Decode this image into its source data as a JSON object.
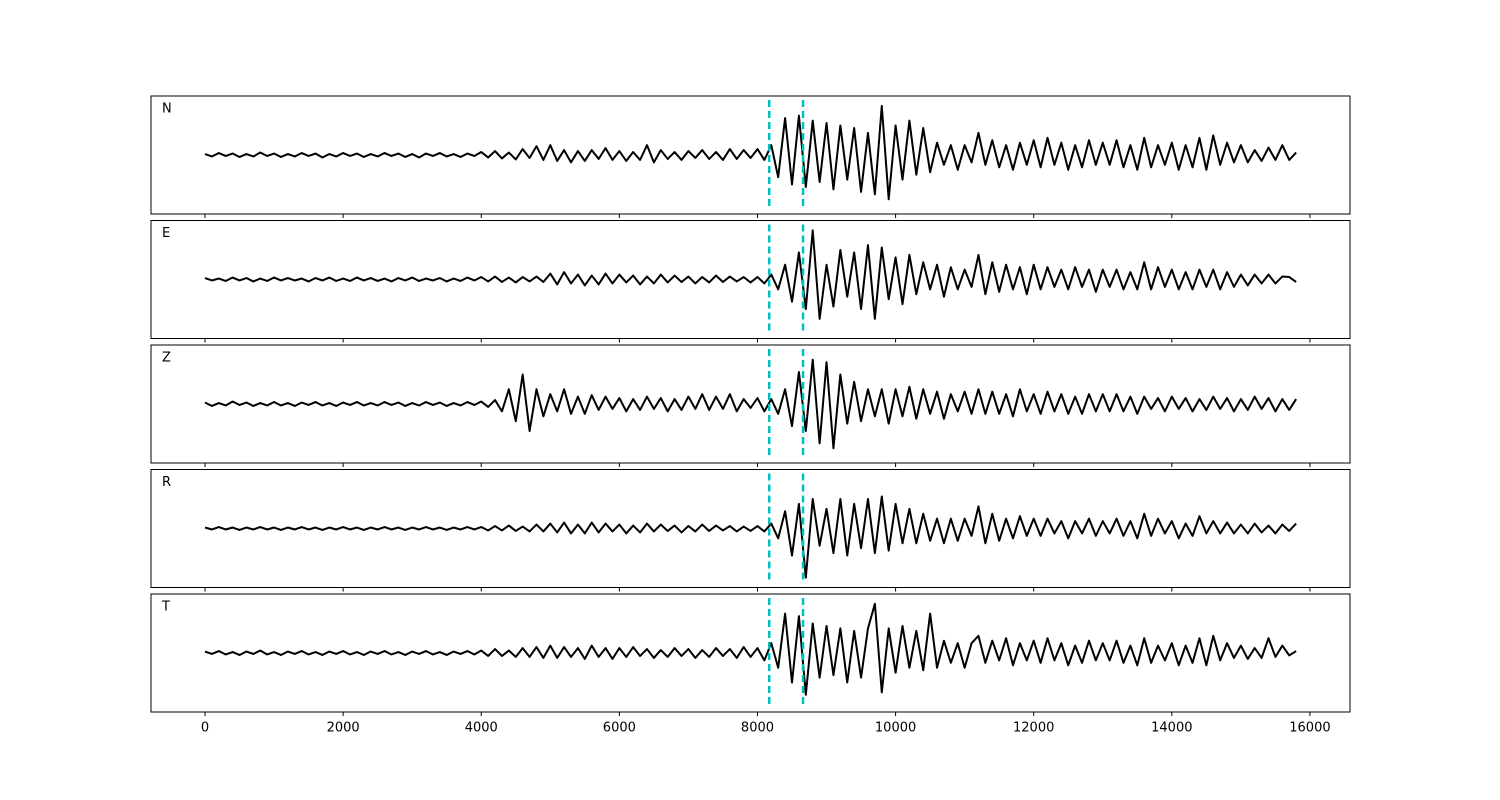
{
  "chart_data": {
    "type": "line",
    "layout": "stacked",
    "xlim": [
      -782,
      16580
    ],
    "xticks": [
      0,
      2000,
      4000,
      6000,
      8000,
      10000,
      12000,
      14000,
      16000
    ],
    "ylim": [
      -1.2,
      1.2
    ],
    "vlines": [
      8170,
      8660
    ],
    "vline_color": "#00bfbf",
    "x": [
      0,
      100,
      200,
      300,
      400,
      500,
      600,
      700,
      800,
      900,
      1000,
      1100,
      1200,
      1300,
      1400,
      1500,
      1600,
      1700,
      1800,
      1900,
      2000,
      2100,
      2200,
      2300,
      2400,
      2500,
      2600,
      2700,
      2800,
      2900,
      3000,
      3100,
      3200,
      3300,
      3400,
      3500,
      3600,
      3700,
      3800,
      3900,
      4000,
      4100,
      4200,
      4300,
      4400,
      4500,
      4600,
      4700,
      4800,
      4900,
      5000,
      5100,
      5200,
      5300,
      5400,
      5500,
      5600,
      5700,
      5800,
      5900,
      6000,
      6100,
      6200,
      6300,
      6400,
      6500,
      6600,
      6700,
      6800,
      6900,
      7000,
      7100,
      7200,
      7300,
      7400,
      7500,
      7600,
      7700,
      7800,
      7900,
      8000,
      8100,
      8200,
      8300,
      8400,
      8500,
      8600,
      8700,
      8800,
      8900,
      9000,
      9100,
      9200,
      9300,
      9400,
      9500,
      9600,
      9700,
      9800,
      9900,
      10000,
      10100,
      10200,
      10300,
      10400,
      10500,
      10600,
      10700,
      10800,
      10900,
      11000,
      11100,
      11200,
      11300,
      11400,
      11500,
      11600,
      11700,
      11800,
      11900,
      12000,
      12100,
      12200,
      12300,
      12400,
      12500,
      12600,
      12700,
      12800,
      12900,
      13000,
      13100,
      13200,
      13300,
      13400,
      13500,
      13600,
      13700,
      13800,
      13900,
      14000,
      14100,
      14200,
      14300,
      14400,
      14500,
      14600,
      14700,
      14800,
      14900,
      15000,
      15100,
      15200,
      15300,
      15400,
      15500,
      15600,
      15700,
      15800
    ],
    "series": [
      {
        "name": "N",
        "color": "#000000",
        "values": [
          0.02,
          -0.03,
          0.04,
          -0.02,
          0.03,
          -0.04,
          0.02,
          -0.03,
          0.05,
          -0.02,
          0.03,
          -0.04,
          0.02,
          -0.03,
          0.04,
          -0.02,
          0.03,
          -0.05,
          0.02,
          -0.03,
          0.04,
          -0.02,
          0.03,
          -0.04,
          0.02,
          -0.03,
          0.04,
          -0.02,
          0.03,
          -0.04,
          0.02,
          -0.05,
          0.03,
          -0.02,
          0.04,
          -0.03,
          0.02,
          -0.04,
          0.03,
          -0.02,
          0.06,
          -0.05,
          0.08,
          -0.07,
          0.05,
          -0.09,
          0.12,
          -0.06,
          0.18,
          -0.1,
          0.2,
          -0.12,
          0.1,
          -0.15,
          0.08,
          -0.12,
          0.1,
          -0.08,
          0.14,
          -0.1,
          0.08,
          -0.12,
          0.06,
          -0.1,
          0.2,
          -0.15,
          0.1,
          -0.08,
          0.06,
          -0.1,
          0.08,
          -0.06,
          0.1,
          -0.08,
          0.06,
          -0.1,
          0.12,
          -0.08,
          0.1,
          -0.06,
          0.12,
          -0.1,
          0.2,
          -0.45,
          0.75,
          -0.6,
          0.8,
          -0.65,
          0.7,
          -0.55,
          0.65,
          -0.7,
          0.6,
          -0.5,
          0.55,
          -0.75,
          0.45,
          -0.8,
          1.0,
          -0.9,
          0.6,
          -0.5,
          0.7,
          -0.4,
          0.55,
          -0.35,
          0.25,
          -0.2,
          0.2,
          -0.3,
          0.2,
          -0.15,
          0.45,
          -0.2,
          0.3,
          -0.25,
          0.2,
          -0.3,
          0.25,
          -0.2,
          0.3,
          -0.25,
          0.35,
          -0.2,
          0.25,
          -0.3,
          0.2,
          -0.25,
          0.3,
          -0.2,
          0.25,
          -0.2,
          0.3,
          -0.25,
          0.2,
          -0.3,
          0.35,
          -0.25,
          0.2,
          -0.2,
          0.25,
          -0.3,
          0.2,
          -0.25,
          0.35,
          -0.3,
          0.4,
          -0.2,
          0.25,
          -0.15,
          0.2,
          -0.15,
          0.1,
          -0.12,
          0.15,
          -0.1,
          0.2,
          -0.1,
          0.05
        ]
      },
      {
        "name": "E",
        "color": "#000000",
        "values": [
          0.03,
          -0.02,
          0.02,
          -0.03,
          0.04,
          -0.02,
          0.03,
          -0.04,
          0.02,
          -0.03,
          0.04,
          -0.02,
          0.03,
          -0.02,
          0.02,
          -0.04,
          0.03,
          -0.02,
          0.04,
          -0.03,
          0.02,
          -0.03,
          0.04,
          -0.02,
          0.03,
          -0.03,
          0.02,
          -0.04,
          0.03,
          -0.02,
          0.04,
          -0.03,
          0.02,
          -0.02,
          0.03,
          -0.04,
          0.02,
          -0.03,
          0.04,
          -0.02,
          0.05,
          -0.04,
          0.06,
          -0.05,
          0.04,
          -0.06,
          0.05,
          -0.04,
          0.06,
          -0.05,
          0.12,
          -0.1,
          0.15,
          -0.08,
          0.1,
          -0.12,
          0.08,
          -0.1,
          0.12,
          -0.08,
          0.1,
          -0.06,
          0.08,
          -0.1,
          0.06,
          -0.08,
          0.1,
          -0.06,
          0.08,
          -0.05,
          0.06,
          -0.08,
          0.05,
          -0.06,
          0.08,
          -0.05,
          0.06,
          -0.04,
          0.05,
          -0.06,
          0.05,
          -0.08,
          0.1,
          -0.2,
          0.3,
          -0.45,
          0.55,
          -0.6,
          1.0,
          -0.8,
          0.3,
          -0.55,
          0.6,
          -0.35,
          0.55,
          -0.6,
          0.7,
          -0.8,
          0.65,
          -0.4,
          0.45,
          -0.5,
          0.5,
          -0.3,
          0.35,
          -0.2,
          0.3,
          -0.35,
          0.25,
          -0.2,
          0.2,
          -0.15,
          0.5,
          -0.3,
          0.35,
          -0.25,
          0.3,
          -0.2,
          0.25,
          -0.3,
          0.3,
          -0.2,
          0.25,
          -0.15,
          0.2,
          -0.2,
          0.25,
          -0.15,
          0.2,
          -0.25,
          0.2,
          -0.15,
          0.2,
          -0.2,
          0.15,
          -0.2,
          0.35,
          -0.2,
          0.25,
          -0.15,
          0.2,
          -0.2,
          0.15,
          -0.2,
          0.2,
          -0.15,
          0.2,
          -0.2,
          0.15,
          -0.15,
          0.1,
          -0.12,
          0.1,
          -0.08,
          0.1,
          -0.08,
          0.06,
          0.05,
          -0.05
        ]
      },
      {
        "name": "Z",
        "color": "#000000",
        "values": [
          0.03,
          -0.04,
          0.02,
          -0.03,
          0.05,
          -0.02,
          0.03,
          -0.04,
          0.02,
          -0.03,
          0.04,
          -0.03,
          0.02,
          -0.04,
          0.03,
          -0.02,
          0.04,
          -0.03,
          0.02,
          -0.04,
          0.03,
          -0.02,
          0.04,
          -0.03,
          0.02,
          -0.03,
          0.04,
          -0.02,
          0.03,
          -0.04,
          0.02,
          -0.03,
          0.04,
          -0.02,
          0.03,
          -0.04,
          0.02,
          -0.03,
          0.04,
          -0.02,
          0.05,
          -0.06,
          0.08,
          -0.15,
          0.3,
          -0.35,
          0.6,
          -0.55,
          0.3,
          -0.25,
          0.2,
          -0.15,
          0.3,
          -0.2,
          0.15,
          -0.2,
          0.18,
          -0.12,
          0.15,
          -0.1,
          0.12,
          -0.15,
          0.1,
          -0.12,
          0.15,
          -0.1,
          0.12,
          -0.15,
          0.1,
          -0.12,
          0.15,
          -0.1,
          0.2,
          -0.12,
          0.15,
          -0.1,
          0.2,
          -0.15,
          0.1,
          -0.08,
          0.12,
          -0.15,
          0.1,
          -0.2,
          0.3,
          -0.45,
          0.65,
          -0.55,
          0.9,
          -0.8,
          0.85,
          -0.9,
          0.6,
          -0.4,
          0.45,
          -0.35,
          0.3,
          -0.25,
          0.3,
          -0.4,
          0.3,
          -0.25,
          0.35,
          -0.3,
          0.3,
          -0.2,
          0.25,
          -0.3,
          0.2,
          -0.15,
          0.25,
          -0.2,
          0.3,
          -0.2,
          0.25,
          -0.2,
          0.2,
          -0.25,
          0.3,
          -0.15,
          0.2,
          -0.2,
          0.25,
          -0.15,
          0.2,
          -0.2,
          0.15,
          -0.2,
          0.2,
          -0.15,
          0.2,
          -0.15,
          0.2,
          -0.15,
          0.15,
          -0.2,
          0.15,
          -0.1,
          0.12,
          -0.15,
          0.15,
          -0.1,
          0.12,
          -0.15,
          0.1,
          -0.12,
          0.15,
          -0.1,
          0.12,
          -0.15,
          0.1,
          -0.12,
          0.15,
          -0.1,
          0.12,
          -0.15,
          0.1,
          -0.12,
          0.1
        ]
      },
      {
        "name": "R",
        "color": "#000000",
        "values": [
          0.02,
          -0.02,
          0.03,
          -0.02,
          0.02,
          -0.03,
          0.02,
          -0.02,
          0.03,
          -0.02,
          0.02,
          -0.03,
          0.02,
          -0.02,
          0.03,
          -0.02,
          0.02,
          -0.03,
          0.02,
          -0.02,
          0.03,
          -0.02,
          0.02,
          -0.03,
          0.02,
          -0.02,
          0.03,
          -0.02,
          0.02,
          -0.03,
          0.02,
          -0.02,
          0.03,
          -0.02,
          0.02,
          -0.03,
          0.02,
          -0.02,
          0.03,
          -0.02,
          0.03,
          -0.04,
          0.05,
          -0.04,
          0.06,
          -0.05,
          0.04,
          -0.06,
          0.08,
          -0.06,
          0.1,
          -0.08,
          0.12,
          -0.1,
          0.08,
          -0.1,
          0.12,
          -0.08,
          0.1,
          -0.06,
          0.08,
          -0.1,
          0.06,
          -0.08,
          0.1,
          -0.06,
          0.08,
          -0.05,
          0.06,
          -0.08,
          0.05,
          -0.06,
          0.08,
          -0.05,
          0.06,
          -0.04,
          0.05,
          -0.06,
          0.04,
          -0.05,
          0.05,
          -0.06,
          0.1,
          -0.2,
          0.35,
          -0.55,
          0.5,
          -1.0,
          0.6,
          -0.35,
          0.4,
          -0.5,
          0.6,
          -0.55,
          0.5,
          -0.4,
          0.6,
          -0.5,
          0.65,
          -0.45,
          0.5,
          -0.3,
          0.4,
          -0.3,
          0.3,
          -0.25,
          0.2,
          -0.3,
          0.2,
          -0.25,
          0.2,
          -0.15,
          0.45,
          -0.3,
          0.3,
          -0.25,
          0.2,
          -0.2,
          0.25,
          -0.15,
          0.2,
          -0.15,
          0.2,
          -0.1,
          0.15,
          -0.2,
          0.15,
          -0.1,
          0.2,
          -0.15,
          0.15,
          -0.1,
          0.2,
          -0.15,
          0.15,
          -0.2,
          0.3,
          -0.15,
          0.2,
          -0.1,
          0.15,
          -0.2,
          0.1,
          -0.15,
          0.25,
          -0.1,
          0.15,
          -0.1,
          0.12,
          -0.1,
          0.08,
          -0.1,
          0.1,
          -0.08,
          0.06,
          -0.1,
          0.08,
          -0.05,
          0.1
        ]
      },
      {
        "name": "T",
        "color": "#000000",
        "values": [
          0.03,
          -0.02,
          0.04,
          -0.03,
          0.02,
          -0.04,
          0.03,
          -0.02,
          0.05,
          -0.03,
          0.02,
          -0.04,
          0.03,
          -0.02,
          0.04,
          -0.03,
          0.02,
          -0.04,
          0.03,
          -0.02,
          0.04,
          -0.03,
          0.02,
          -0.04,
          0.03,
          -0.02,
          0.04,
          -0.03,
          0.02,
          -0.04,
          0.03,
          -0.02,
          0.04,
          -0.03,
          0.02,
          -0.04,
          0.03,
          -0.02,
          0.04,
          -0.03,
          0.05,
          -0.06,
          0.08,
          -0.06,
          0.05,
          -0.08,
          0.1,
          -0.08,
          0.12,
          -0.1,
          0.15,
          -0.1,
          0.12,
          -0.08,
          0.1,
          -0.12,
          0.15,
          -0.08,
          0.1,
          -0.12,
          0.1,
          -0.08,
          0.12,
          -0.06,
          0.08,
          -0.1,
          0.06,
          -0.08,
          0.1,
          -0.06,
          0.08,
          -0.1,
          0.06,
          -0.08,
          0.1,
          -0.06,
          0.08,
          -0.1,
          0.12,
          -0.08,
          0.1,
          -0.15,
          0.2,
          -0.3,
          0.8,
          -0.6,
          0.75,
          -0.85,
          0.6,
          -0.5,
          0.55,
          -0.45,
          0.5,
          -0.6,
          0.45,
          -0.5,
          0.5,
          1.0,
          -0.8,
          0.5,
          -0.4,
          0.55,
          -0.3,
          0.45,
          -0.35,
          0.8,
          -0.3,
          0.25,
          -0.2,
          0.2,
          -0.3,
          0.2,
          0.35,
          -0.2,
          0.25,
          -0.15,
          0.3,
          -0.25,
          0.2,
          -0.15,
          0.25,
          -0.2,
          0.3,
          -0.15,
          0.2,
          -0.25,
          0.15,
          -0.2,
          0.25,
          -0.15,
          0.2,
          -0.15,
          0.25,
          -0.2,
          0.15,
          -0.25,
          0.3,
          -0.2,
          0.15,
          -0.15,
          0.2,
          -0.25,
          0.15,
          -0.2,
          0.3,
          -0.25,
          0.35,
          -0.15,
          0.2,
          -0.1,
          0.15,
          -0.12,
          0.1,
          -0.1,
          0.3,
          -0.08,
          0.15,
          -0.05,
          0.04
        ]
      }
    ]
  }
}
